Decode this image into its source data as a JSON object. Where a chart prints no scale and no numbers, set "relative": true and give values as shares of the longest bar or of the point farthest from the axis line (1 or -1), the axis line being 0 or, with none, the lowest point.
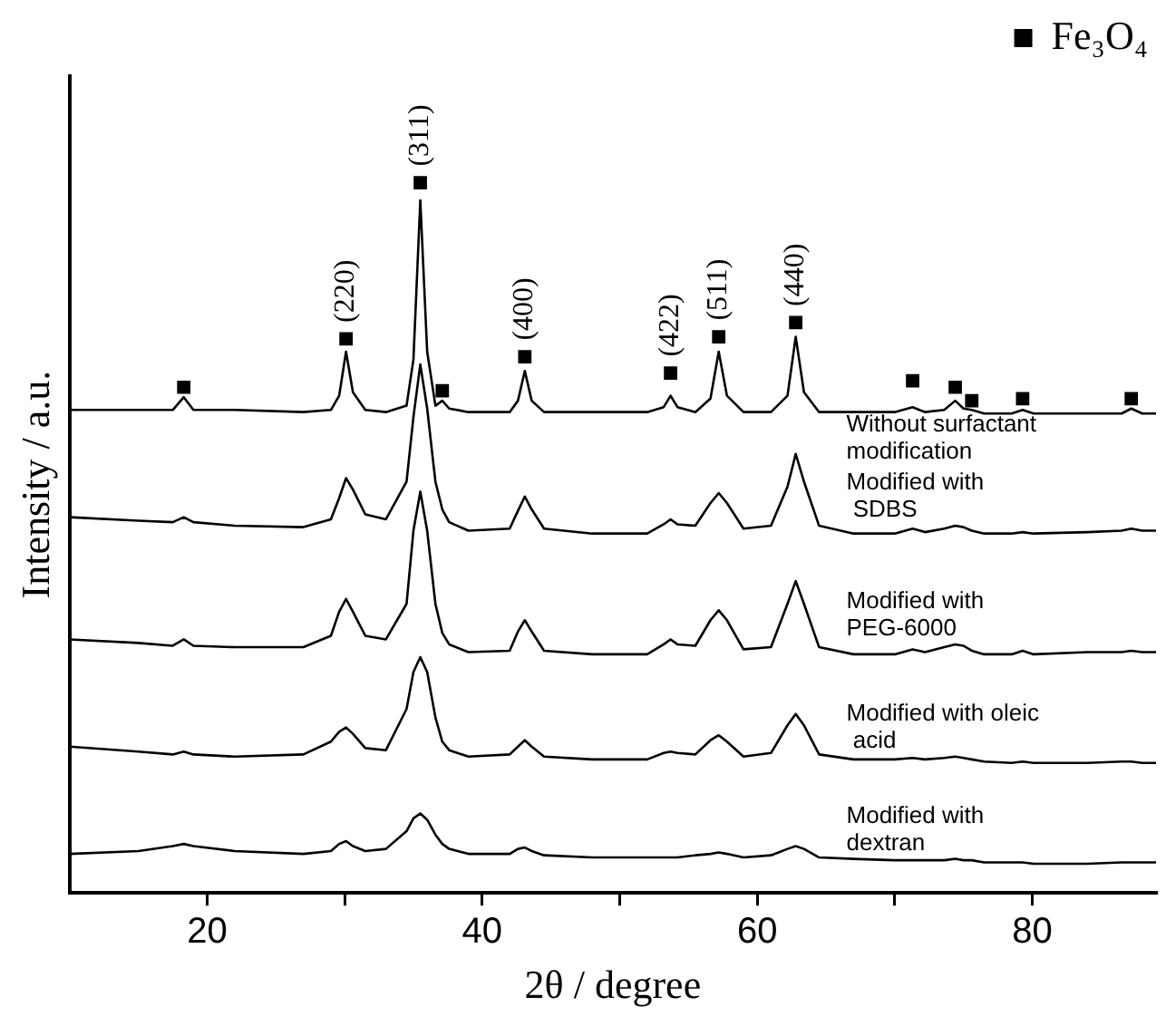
{
  "chart_data": {
    "type": "line",
    "relative": true,
    "xlabel": "2θ / degree",
    "ylabel": "Intensity / a.u.",
    "xlim": [
      10,
      89
    ],
    "xticks": [
      20,
      {
        "value": 30,
        "label": null
      },
      40,
      {
        "value": 50,
        "label": null
      },
      60,
      {
        "value": 70,
        "label": null
      },
      80
    ],
    "grid": false,
    "legend": "top right",
    "marker": "none",
    "line_style": "solid",
    "x": [
      10,
      15,
      17.5,
      18.3,
      19,
      22,
      27,
      29,
      29.6,
      30.1,
      30.6,
      31.5,
      33,
      34.5,
      35,
      35.5,
      36,
      36.6,
      37.1,
      37.6,
      39,
      42,
      42.6,
      43.1,
      43.6,
      44.5,
      48,
      52,
      53.2,
      53.7,
      54.2,
      55.5,
      56.6,
      57.2,
      57.8,
      59,
      61,
      62.2,
      62.8,
      63.4,
      64.5,
      67,
      70,
      71.3,
      72.2,
      73.6,
      74.4,
      75,
      75.6,
      76.5,
      78.5,
      79.3,
      80.1,
      84,
      86.5,
      87.2,
      88,
      89
    ],
    "series": [
      {
        "name": "Without surfactant\nmodification",
        "color": "#000000",
        "values": [
          0.68,
          0.68,
          0.68,
          0.698,
          0.68,
          0.68,
          0.677,
          0.68,
          0.7,
          0.762,
          0.705,
          0.68,
          0.677,
          0.686,
          0.751,
          0.975,
          0.762,
          0.686,
          0.693,
          0.682,
          0.677,
          0.677,
          0.693,
          0.735,
          0.693,
          0.677,
          0.677,
          0.677,
          0.684,
          0.7,
          0.684,
          0.677,
          0.696,
          0.762,
          0.7,
          0.677,
          0.677,
          0.7,
          0.783,
          0.705,
          0.677,
          0.677,
          0.677,
          0.684,
          0.677,
          0.68,
          0.693,
          0.682,
          0.68,
          0.675,
          0.675,
          0.68,
          0.675,
          0.675,
          0.675,
          0.682,
          0.675,
          0.675
        ]
      },
      {
        "name": "Modified with\n SDBS",
        "color": "#000000",
        "values": [
          0.529,
          0.524,
          0.522,
          0.529,
          0.522,
          0.517,
          0.515,
          0.526,
          0.556,
          0.584,
          0.568,
          0.533,
          0.526,
          0.579,
          0.67,
          0.744,
          0.682,
          0.579,
          0.54,
          0.522,
          0.51,
          0.513,
          0.538,
          0.558,
          0.54,
          0.513,
          0.506,
          0.506,
          0.519,
          0.526,
          0.519,
          0.517,
          0.549,
          0.563,
          0.549,
          0.513,
          0.517,
          0.572,
          0.618,
          0.579,
          0.517,
          0.506,
          0.506,
          0.513,
          0.508,
          0.513,
          0.517,
          0.515,
          0.51,
          0.506,
          0.506,
          0.508,
          0.506,
          0.508,
          0.51,
          0.513,
          0.51,
          0.51
        ]
      },
      {
        "name": "Modified with\nPEG-6000",
        "color": "#000000",
        "values": [
          0.357,
          0.352,
          0.348,
          0.357,
          0.348,
          0.346,
          0.346,
          0.362,
          0.396,
          0.414,
          0.396,
          0.362,
          0.357,
          0.407,
          0.51,
          0.565,
          0.51,
          0.407,
          0.366,
          0.35,
          0.339,
          0.341,
          0.368,
          0.384,
          0.368,
          0.341,
          0.336,
          0.336,
          0.35,
          0.357,
          0.35,
          0.348,
          0.384,
          0.398,
          0.384,
          0.343,
          0.346,
          0.407,
          0.439,
          0.407,
          0.346,
          0.336,
          0.336,
          0.343,
          0.339,
          0.346,
          0.35,
          0.348,
          0.341,
          0.336,
          0.336,
          0.341,
          0.336,
          0.339,
          0.339,
          0.341,
          0.339,
          0.339
        ]
      },
      {
        "name": "Modified with oleic\n acid",
        "color": "#000000",
        "values": [
          0.206,
          0.199,
          0.195,
          0.199,
          0.195,
          0.192,
          0.195,
          0.213,
          0.227,
          0.233,
          0.224,
          0.204,
          0.201,
          0.259,
          0.311,
          0.332,
          0.311,
          0.247,
          0.213,
          0.201,
          0.192,
          0.195,
          0.206,
          0.215,
          0.206,
          0.192,
          0.188,
          0.188,
          0.197,
          0.199,
          0.197,
          0.195,
          0.215,
          0.222,
          0.213,
          0.192,
          0.197,
          0.236,
          0.252,
          0.236,
          0.195,
          0.188,
          0.188,
          0.19,
          0.188,
          0.19,
          0.192,
          0.19,
          0.188,
          0.185,
          0.183,
          0.185,
          0.183,
          0.183,
          0.185,
          0.185,
          0.183,
          0.183
        ]
      },
      {
        "name": "Modified with\ndextran",
        "color": "#000000",
        "values": [
          0.055,
          0.059,
          0.066,
          0.069,
          0.066,
          0.059,
          0.055,
          0.059,
          0.069,
          0.073,
          0.066,
          0.059,
          0.062,
          0.087,
          0.105,
          0.112,
          0.103,
          0.082,
          0.069,
          0.062,
          0.055,
          0.055,
          0.062,
          0.064,
          0.059,
          0.053,
          0.05,
          0.05,
          0.05,
          0.05,
          0.05,
          0.053,
          0.055,
          0.057,
          0.055,
          0.05,
          0.053,
          0.062,
          0.066,
          0.062,
          0.05,
          0.048,
          0.046,
          0.046,
          0.046,
          0.046,
          0.048,
          0.046,
          0.046,
          0.043,
          0.043,
          0.043,
          0.041,
          0.041,
          0.043,
          0.043,
          0.043,
          0.043
        ]
      },
      {
        "name": "Fe₃O₄",
        "type": "scatter",
        "marker": "square",
        "color": "#000000",
        "x": [
          18.3,
          30.1,
          35.5,
          37.1,
          43.1,
          53.7,
          57.2,
          62.8,
          71.3,
          74.4,
          75.6,
          79.3,
          87.2
        ],
        "values": [
          0.712,
          0.78,
          1.0,
          0.707,
          0.755,
          0.732,
          0.783,
          0.803,
          0.721,
          0.712,
          0.693,
          0.696,
          0.696
        ]
      }
    ],
    "annotations": [
      {
        "text": "(220)",
        "x": 30.1,
        "y": 0.78
      },
      {
        "text": "(311)",
        "x": 35.5,
        "y": 1.0
      },
      {
        "text": "(400)",
        "x": 43.1,
        "y": 0.755
      },
      {
        "text": "(422)",
        "x": 53.7,
        "y": 0.732
      },
      {
        "text": "(511)",
        "x": 57.2,
        "y": 0.783
      },
      {
        "text": "(440)",
        "x": 62.8,
        "y": 0.803
      }
    ]
  }
}
